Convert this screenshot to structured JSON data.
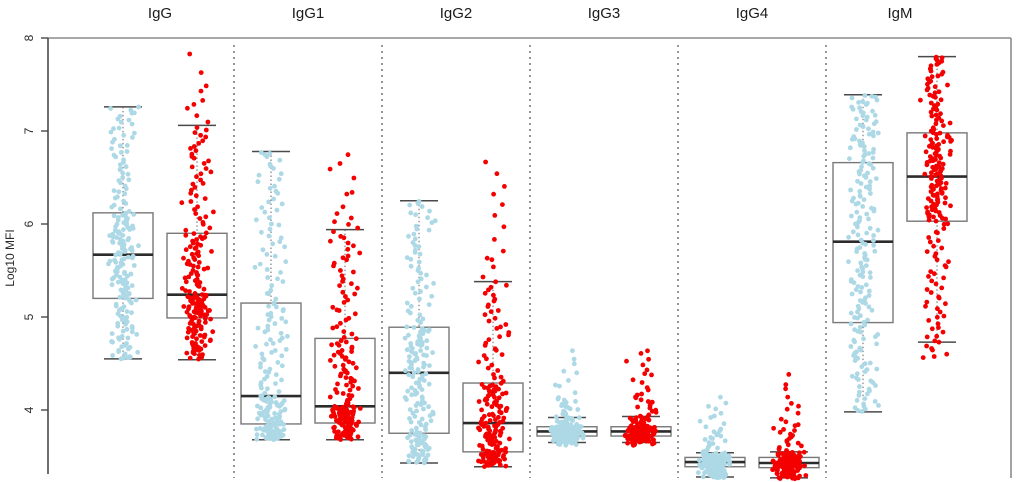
{
  "figure": {
    "ylabel": "Log10 MFI"
  },
  "chart_data": {
    "type": "boxplot-jitter",
    "title": "",
    "xlabel": "",
    "ylabel": "Log10 MFI",
    "yticks": [
      4,
      5,
      6,
      7,
      8
    ],
    "ylim_visible": [
      3.25,
      8.0
    ],
    "grid": false,
    "legend": "none",
    "panel_separator_style": "dotted",
    "colors": {
      "group1": "#ADD8E6",
      "group2": "#F40000"
    },
    "panels": [
      {
        "label": "IgG",
        "groups": [
          {
            "color": "group1",
            "n": 200,
            "box": {
              "q1": 5.2,
              "median": 5.67,
              "q3": 6.12
            },
            "whiskers": {
              "low": 4.55,
              "high": 7.26
            },
            "points_range": [
              4.55,
              7.26
            ],
            "quantiles": [
              [
                0,
                4.55
              ],
              [
                0.02,
                4.57
              ],
              [
                0.25,
                5.2
              ],
              [
                0.5,
                5.67
              ],
              [
                0.75,
                6.12
              ],
              [
                0.99,
                7.24
              ],
              [
                1,
                7.26
              ]
            ]
          },
          {
            "color": "group2",
            "n": 200,
            "box": {
              "q1": 4.99,
              "median": 5.24,
              "q3": 5.9
            },
            "whiskers": {
              "low": 4.54,
              "high": 7.06
            },
            "points_range": [
              4.54,
              7.85
            ],
            "quantiles": [
              [
                0,
                4.54
              ],
              [
                0.02,
                4.58
              ],
              [
                0.25,
                4.99
              ],
              [
                0.5,
                5.24
              ],
              [
                0.75,
                5.9
              ],
              [
                0.955,
                7.05
              ],
              [
                0.975,
                7.32
              ],
              [
                0.985,
                7.46
              ],
              [
                1,
                7.85
              ]
            ]
          }
        ]
      },
      {
        "label": "IgG1",
        "groups": [
          {
            "color": "group1",
            "n": 200,
            "box": {
              "q1": 3.85,
              "median": 4.15,
              "q3": 5.15
            },
            "whiskers": {
              "low": 3.68,
              "high": 6.78
            },
            "points_range": [
              3.68,
              6.78
            ],
            "quantiles": [
              [
                0,
                3.68
              ],
              [
                0.04,
                3.71
              ],
              [
                0.25,
                3.85
              ],
              [
                0.5,
                4.15
              ],
              [
                0.75,
                5.15
              ],
              [
                0.985,
                6.74
              ],
              [
                1,
                6.78
              ]
            ]
          },
          {
            "color": "group2",
            "n": 200,
            "box": {
              "q1": 3.86,
              "median": 4.04,
              "q3": 4.77
            },
            "whiskers": {
              "low": 3.68,
              "high": 5.94
            },
            "points_range": [
              3.68,
              6.78
            ],
            "quantiles": [
              [
                0,
                3.68
              ],
              [
                0.04,
                3.71
              ],
              [
                0.25,
                3.86
              ],
              [
                0.5,
                4.04
              ],
              [
                0.75,
                4.77
              ],
              [
                0.94,
                5.92
              ],
              [
                0.965,
                6.15
              ],
              [
                0.98,
                6.42
              ],
              [
                1,
                6.78
              ]
            ]
          }
        ]
      },
      {
        "label": "IgG2",
        "groups": [
          {
            "color": "group1",
            "n": 200,
            "box": {
              "q1": 3.75,
              "median": 4.4,
              "q3": 4.89
            },
            "whiskers": {
              "low": 3.43,
              "high": 6.25
            },
            "points_range": [
              3.43,
              6.25
            ],
            "quantiles": [
              [
                0,
                3.43
              ],
              [
                0.04,
                3.47
              ],
              [
                0.25,
                3.75
              ],
              [
                0.5,
                4.4
              ],
              [
                0.75,
                4.89
              ],
              [
                0.985,
                6.22
              ],
              [
                1,
                6.25
              ]
            ]
          },
          {
            "color": "group2",
            "n": 200,
            "box": {
              "q1": 3.55,
              "median": 3.86,
              "q3": 4.29
            },
            "whiskers": {
              "low": 3.39,
              "high": 5.38
            },
            "points_range": [
              3.39,
              6.69
            ],
            "quantiles": [
              [
                0,
                3.39
              ],
              [
                0.04,
                3.43
              ],
              [
                0.25,
                3.55
              ],
              [
                0.5,
                3.86
              ],
              [
                0.75,
                4.29
              ],
              [
                0.93,
                5.36
              ],
              [
                0.96,
                5.75
              ],
              [
                0.985,
                6.35
              ],
              [
                1,
                6.69
              ]
            ]
          }
        ]
      },
      {
        "label": "IgG3",
        "groups": [
          {
            "color": "group1",
            "n": 200,
            "box": {
              "q1": 3.72,
              "median": 3.77,
              "q3": 3.82
            },
            "whiskers": {
              "low": 3.65,
              "high": 3.92
            },
            "points_range": [
              3.62,
              4.68
            ],
            "quantiles": [
              [
                0,
                3.62
              ],
              [
                0.05,
                3.66
              ],
              [
                0.25,
                3.72
              ],
              [
                0.5,
                3.77
              ],
              [
                0.75,
                3.82
              ],
              [
                0.87,
                3.92
              ],
              [
                0.95,
                4.12
              ],
              [
                0.985,
                4.45
              ],
              [
                1,
                4.68
              ]
            ]
          },
          {
            "color": "group2",
            "n": 200,
            "box": {
              "q1": 3.72,
              "median": 3.77,
              "q3": 3.82
            },
            "whiskers": {
              "low": 3.65,
              "high": 3.93
            },
            "points_range": [
              3.62,
              4.65
            ],
            "quantiles": [
              [
                0,
                3.62
              ],
              [
                0.05,
                3.66
              ],
              [
                0.25,
                3.72
              ],
              [
                0.5,
                3.77
              ],
              [
                0.75,
                3.82
              ],
              [
                0.86,
                3.93
              ],
              [
                0.94,
                4.18
              ],
              [
                0.98,
                4.5
              ],
              [
                1,
                4.65
              ]
            ]
          }
        ]
      },
      {
        "label": "IgG4",
        "groups": [
          {
            "color": "group1",
            "n": 200,
            "box": {
              "q1": 3.39,
              "median": 3.44,
              "q3": 3.49
            },
            "whiskers": {
              "low": 3.28,
              "high": 3.54
            },
            "points_range": [
              3.27,
              4.14
            ],
            "quantiles": [
              [
                0,
                3.27
              ],
              [
                0.05,
                3.29
              ],
              [
                0.25,
                3.39
              ],
              [
                0.5,
                3.44
              ],
              [
                0.75,
                3.49
              ],
              [
                0.86,
                3.54
              ],
              [
                0.95,
                3.8
              ],
              [
                0.99,
                4.05
              ],
              [
                1,
                4.14
              ]
            ]
          },
          {
            "color": "group2",
            "n": 200,
            "box": {
              "q1": 3.38,
              "median": 3.43,
              "q3": 3.49
            },
            "whiskers": {
              "low": 3.27,
              "high": 3.55
            },
            "points_range": [
              3.26,
              4.52
            ],
            "quantiles": [
              [
                0,
                3.26
              ],
              [
                0.05,
                3.29
              ],
              [
                0.25,
                3.38
              ],
              [
                0.5,
                3.43
              ],
              [
                0.75,
                3.49
              ],
              [
                0.86,
                3.55
              ],
              [
                0.95,
                3.85
              ],
              [
                0.98,
                4.1
              ],
              [
                0.995,
                4.35
              ],
              [
                1,
                4.52
              ]
            ]
          }
        ]
      },
      {
        "label": "IgM",
        "groups": [
          {
            "color": "group1",
            "n": 200,
            "box": {
              "q1": 4.94,
              "median": 5.81,
              "q3": 6.66
            },
            "whiskers": {
              "low": 3.98,
              "high": 7.39
            },
            "points_range": [
              3.98,
              7.39
            ],
            "quantiles": [
              [
                0,
                3.98
              ],
              [
                0.03,
                4.06
              ],
              [
                0.25,
                4.94
              ],
              [
                0.5,
                5.81
              ],
              [
                0.75,
                6.66
              ],
              [
                0.985,
                7.36
              ],
              [
                1,
                7.39
              ]
            ]
          },
          {
            "color": "group2",
            "n": 200,
            "box": {
              "q1": 6.03,
              "median": 6.51,
              "q3": 6.98
            },
            "whiskers": {
              "low": 4.73,
              "high": 7.8
            },
            "points_range": [
              4.55,
              7.8
            ],
            "quantiles": [
              [
                0,
                4.55
              ],
              [
                0.015,
                4.62
              ],
              [
                0.035,
                4.73
              ],
              [
                0.25,
                6.03
              ],
              [
                0.5,
                6.51
              ],
              [
                0.75,
                6.98
              ],
              [
                0.985,
                7.77
              ],
              [
                1,
                7.8
              ]
            ]
          }
        ]
      }
    ]
  }
}
